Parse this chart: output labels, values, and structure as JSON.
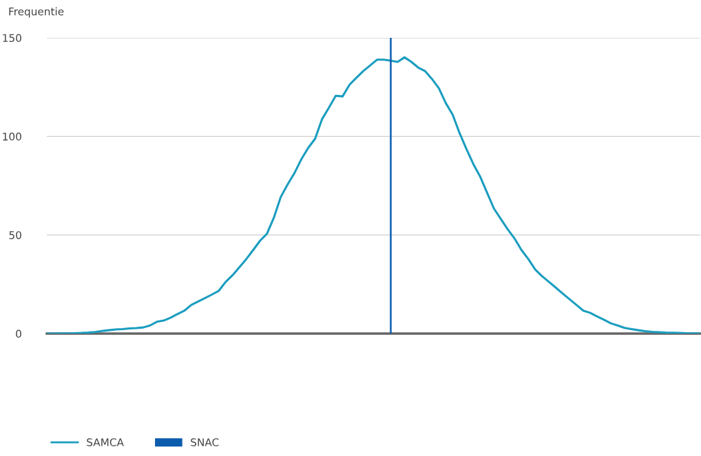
{
  "chart_data": {
    "type": "line",
    "ylabel": "Frequentie",
    "categories": [
      null,
      null,
      null,
      null,
      null,
      null,
      null,
      null,
      null,
      null,
      null,
      null,
      null,
      null,
      null,
      null,
      null,
      null,
      null,
      null,
      null,
      null,
      null,
      null,
      null,
      null,
      null,
      null,
      null,
      null,
      null,
      null,
      null,
      null,
      null,
      null,
      null,
      null,
      null,
      null,
      null,
      null,
      null,
      null,
      null,
      null,
      null,
      null,
      null,
      null,
      null,
      null,
      null,
      null,
      null,
      null,
      null,
      null,
      null,
      null,
      null,
      null,
      null,
      null,
      null,
      null,
      null,
      null,
      null,
      null,
      null,
      null,
      null,
      null,
      null,
      null,
      null,
      null,
      null,
      null,
      null,
      null,
      null,
      null,
      null,
      null,
      null,
      null,
      null,
      null,
      null,
      null,
      null,
      null,
      null,
      null
    ],
    "series": [
      {
        "name": "SAMCA",
        "color": "#1a9dbf",
        "values": [
          0,
          0,
          0.1,
          0.1,
          0.2,
          0.3,
          0.5,
          0.8,
          1.3,
          1.7,
          2.1,
          2.3,
          2.6,
          2.8,
          3.1,
          4.1,
          6.0,
          6.6,
          8.1,
          9.9,
          11.6,
          14.5,
          16.3,
          18.0,
          19.8,
          21.7,
          26.2,
          29.6,
          33.7,
          37.8,
          42.4,
          47.1,
          50.6,
          58.7,
          69.2,
          75.6,
          81.4,
          88.4,
          94.2,
          98.8,
          108.7,
          114.5,
          120.6,
          120.3,
          126.2,
          129.7,
          133.1,
          136,
          138.9,
          138.9,
          138.4,
          137.8,
          140.1,
          137.8,
          134.9,
          133.1,
          129.1,
          124.4,
          116.9,
          111,
          101.7,
          93.6,
          86,
          79.6,
          71.5,
          63.4,
          58.1,
          52.9,
          48.2,
          42.4,
          37.8,
          32.5,
          29.1,
          26.2,
          23.3,
          20.3,
          17.4,
          14.5,
          11.6,
          10.5,
          8.7,
          7.0,
          5.2,
          4.1,
          2.9,
          2.3,
          1.7,
          1.2,
          0.9,
          0.7,
          0.5,
          0.4,
          0.3,
          0.2,
          0.1,
          0
        ]
      },
      {
        "name": "SNAC",
        "type": "bar",
        "color": "#0b5cad",
        "values": [
          null,
          null,
          null,
          null,
          null,
          null,
          null,
          null,
          null,
          null,
          null,
          null,
          null,
          null,
          null,
          null,
          null,
          null,
          null,
          null,
          null,
          null,
          null,
          null,
          null,
          null,
          null,
          null,
          null,
          null,
          null,
          null,
          null,
          null,
          null,
          null,
          null,
          null,
          null,
          null,
          null,
          null,
          null,
          null,
          null,
          null,
          null,
          null,
          null,
          null,
          150,
          null,
          null,
          null,
          null,
          null,
          null,
          null,
          null,
          null,
          null,
          null,
          null,
          null,
          null,
          null,
          null,
          null,
          null,
          null,
          null,
          null,
          null,
          null,
          null,
          null,
          null,
          null,
          null,
          null,
          null,
          null,
          null,
          null,
          null,
          null,
          null,
          null,
          null,
          null,
          null,
          null,
          null,
          null,
          null,
          null
        ]
      }
    ],
    "ylim": [
      0,
      150
    ],
    "yticks": [
      0,
      50,
      100,
      150
    ],
    "grid": "y",
    "legend": "bottom",
    "tick_labels": "y"
  }
}
